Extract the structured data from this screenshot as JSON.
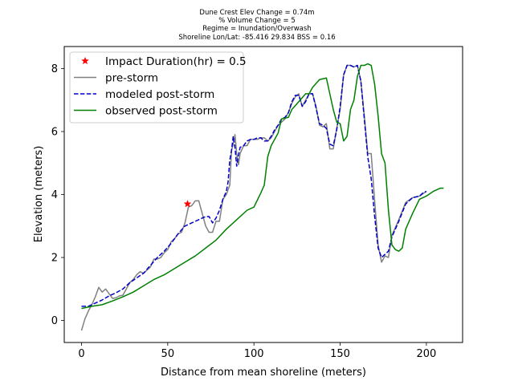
{
  "chart_data": {
    "type": "line",
    "title_lines": [
      "Dune Crest Elev Change = 0.74m",
      "% Volume Change = 5",
      "Regime = Inundation/Overwash",
      "Shoreline Lon/Lat: -85.416 29.834   BSS = 0.16"
    ],
    "xlabel": "Distance from mean shoreline (meters)",
    "ylabel": "Elevation (meters)",
    "xlim": [
      -10,
      221
    ],
    "ylim": [
      -0.7,
      8.7
    ],
    "xticks": [
      0,
      50,
      100,
      150,
      200
    ],
    "yticks": [
      0,
      2,
      4,
      6,
      8
    ],
    "legend_position": "upper-left",
    "marker": {
      "name": "Impact Duration(hr) = 0.5",
      "x": 61.5,
      "y": 3.7,
      "color": "#ff0000",
      "symbol": "star"
    },
    "series": [
      {
        "name": "pre-storm",
        "color": "#808080",
        "style": "solid",
        "points": [
          [
            0,
            -0.32
          ],
          [
            2,
            0.05
          ],
          [
            4,
            0.3
          ],
          [
            6,
            0.5
          ],
          [
            8,
            0.75
          ],
          [
            10,
            1.05
          ],
          [
            12,
            0.9
          ],
          [
            14,
            1.0
          ],
          [
            16,
            0.85
          ],
          [
            18,
            0.7
          ],
          [
            20,
            0.72
          ],
          [
            22,
            0.78
          ],
          [
            24,
            0.8
          ],
          [
            26,
            1.0
          ],
          [
            28,
            1.2
          ],
          [
            30,
            1.3
          ],
          [
            32,
            1.45
          ],
          [
            34,
            1.55
          ],
          [
            36,
            1.5
          ],
          [
            38,
            1.6
          ],
          [
            40,
            1.7
          ],
          [
            42,
            1.95
          ],
          [
            44,
            1.95
          ],
          [
            46,
            2.0
          ],
          [
            48,
            2.15
          ],
          [
            50,
            2.25
          ],
          [
            52,
            2.5
          ],
          [
            54,
            2.6
          ],
          [
            56,
            2.75
          ],
          [
            58,
            2.8
          ],
          [
            60,
            3.1
          ],
          [
            62,
            3.6
          ],
          [
            64,
            3.65
          ],
          [
            66,
            3.8
          ],
          [
            68,
            3.8
          ],
          [
            70,
            3.4
          ],
          [
            72,
            3.0
          ],
          [
            74,
            2.8
          ],
          [
            76,
            2.8
          ],
          [
            78,
            3.15
          ],
          [
            80,
            3.15
          ],
          [
            82,
            3.85
          ],
          [
            84,
            4.0
          ],
          [
            86,
            4.3
          ],
          [
            87,
            5.4
          ],
          [
            88,
            5.6
          ],
          [
            89,
            5.9
          ],
          [
            90,
            5.3
          ],
          [
            91,
            4.95
          ],
          [
            92,
            5.3
          ],
          [
            94,
            5.55
          ],
          [
            96,
            5.55
          ],
          [
            98,
            5.75
          ],
          [
            100,
            5.75
          ],
          [
            102,
            5.75
          ],
          [
            104,
            5.8
          ],
          [
            106,
            5.8
          ],
          [
            108,
            5.7
          ],
          [
            110,
            5.8
          ],
          [
            112,
            6.0
          ],
          [
            114,
            6.2
          ],
          [
            116,
            6.3
          ],
          [
            118,
            6.4
          ],
          [
            120,
            6.6
          ],
          [
            122,
            6.9
          ],
          [
            124,
            7.1
          ],
          [
            126,
            7.2
          ],
          [
            128,
            6.8
          ],
          [
            130,
            7.0
          ],
          [
            132,
            7.2
          ],
          [
            134,
            7.2
          ],
          [
            136,
            6.8
          ],
          [
            138,
            6.2
          ],
          [
            140,
            6.15
          ],
          [
            142,
            6.25
          ],
          [
            144,
            5.45
          ],
          [
            146,
            5.45
          ],
          [
            148,
            6.1
          ],
          [
            150,
            6.7
          ],
          [
            152,
            7.8
          ],
          [
            154,
            8.1
          ],
          [
            156,
            8.1
          ],
          [
            158,
            8.05
          ],
          [
            160,
            8.1
          ],
          [
            162,
            7.6
          ],
          [
            164,
            6.5
          ],
          [
            166,
            5.3
          ],
          [
            168,
            5.3
          ],
          [
            170,
            3.8
          ],
          [
            172,
            2.4
          ],
          [
            174,
            1.85
          ],
          [
            176,
            2.05
          ],
          [
            178,
            2.0
          ],
          [
            180,
            2.7
          ],
          [
            184,
            3.2
          ],
          [
            188,
            3.75
          ],
          [
            192,
            3.9
          ],
          [
            196,
            3.95
          ],
          [
            200,
            4.1
          ]
        ]
      },
      {
        "name": "modeled post-storm",
        "color": "#0000cc",
        "style": "dashed",
        "points": [
          [
            0,
            0.45
          ],
          [
            4,
            0.45
          ],
          [
            8,
            0.55
          ],
          [
            12,
            0.65
          ],
          [
            16,
            0.78
          ],
          [
            20,
            0.88
          ],
          [
            24,
            1.0
          ],
          [
            28,
            1.2
          ],
          [
            32,
            1.35
          ],
          [
            36,
            1.5
          ],
          [
            40,
            1.75
          ],
          [
            44,
            2.0
          ],
          [
            48,
            2.2
          ],
          [
            52,
            2.45
          ],
          [
            56,
            2.75
          ],
          [
            60,
            3.0
          ],
          [
            64,
            3.1
          ],
          [
            68,
            3.2
          ],
          [
            72,
            3.3
          ],
          [
            74,
            3.3
          ],
          [
            76,
            3.1
          ],
          [
            78,
            3.25
          ],
          [
            80,
            3.5
          ],
          [
            82,
            3.85
          ],
          [
            84,
            4.1
          ],
          [
            85,
            4.4
          ],
          [
            86,
            5.1
          ],
          [
            87,
            5.4
          ],
          [
            88,
            5.85
          ],
          [
            89,
            5.5
          ],
          [
            90,
            4.9
          ],
          [
            91,
            5.25
          ],
          [
            92,
            5.5
          ],
          [
            94,
            5.55
          ],
          [
            96,
            5.7
          ],
          [
            98,
            5.75
          ],
          [
            100,
            5.75
          ],
          [
            102,
            5.8
          ],
          [
            104,
            5.8
          ],
          [
            106,
            5.7
          ],
          [
            108,
            5.7
          ],
          [
            110,
            5.85
          ],
          [
            112,
            6.05
          ],
          [
            114,
            6.2
          ],
          [
            116,
            6.4
          ],
          [
            118,
            6.45
          ],
          [
            120,
            6.6
          ],
          [
            122,
            6.95
          ],
          [
            124,
            7.15
          ],
          [
            126,
            7.15
          ],
          [
            128,
            6.8
          ],
          [
            130,
            6.95
          ],
          [
            132,
            7.2
          ],
          [
            134,
            7.2
          ],
          [
            136,
            6.75
          ],
          [
            138,
            6.25
          ],
          [
            140,
            6.2
          ],
          [
            142,
            6.1
          ],
          [
            144,
            5.6
          ],
          [
            146,
            5.55
          ],
          [
            148,
            6.05
          ],
          [
            150,
            6.8
          ],
          [
            152,
            7.8
          ],
          [
            154,
            8.1
          ],
          [
            156,
            8.1
          ],
          [
            158,
            8.05
          ],
          [
            160,
            8.1
          ],
          [
            162,
            7.6
          ],
          [
            164,
            6.4
          ],
          [
            166,
            5.2
          ],
          [
            168,
            4.5
          ],
          [
            170,
            3.3
          ],
          [
            172,
            2.3
          ],
          [
            174,
            2.0
          ],
          [
            176,
            2.1
          ],
          [
            178,
            2.2
          ],
          [
            180,
            2.65
          ],
          [
            184,
            3.15
          ],
          [
            188,
            3.7
          ],
          [
            192,
            3.9
          ],
          [
            196,
            3.95
          ],
          [
            198,
            4.05
          ],
          [
            200,
            4.1
          ]
        ]
      },
      {
        "name": "observed post-storm",
        "color": "#008000",
        "style": "solid",
        "points": [
          [
            0,
            0.38
          ],
          [
            6,
            0.45
          ],
          [
            12,
            0.5
          ],
          [
            18,
            0.62
          ],
          [
            24,
            0.75
          ],
          [
            30,
            0.9
          ],
          [
            36,
            1.1
          ],
          [
            42,
            1.3
          ],
          [
            48,
            1.45
          ],
          [
            54,
            1.65
          ],
          [
            60,
            1.85
          ],
          [
            66,
            2.05
          ],
          [
            72,
            2.3
          ],
          [
            78,
            2.55
          ],
          [
            84,
            2.9
          ],
          [
            90,
            3.2
          ],
          [
            96,
            3.5
          ],
          [
            100,
            3.6
          ],
          [
            104,
            4.05
          ],
          [
            106,
            4.3
          ],
          [
            108,
            5.2
          ],
          [
            110,
            5.55
          ],
          [
            114,
            5.95
          ],
          [
            116,
            6.4
          ],
          [
            120,
            6.45
          ],
          [
            122,
            6.7
          ],
          [
            126,
            6.95
          ],
          [
            130,
            7.2
          ],
          [
            132,
            7.2
          ],
          [
            134,
            7.4
          ],
          [
            138,
            7.65
          ],
          [
            142,
            7.7
          ],
          [
            144,
            7.2
          ],
          [
            146,
            6.7
          ],
          [
            148,
            6.3
          ],
          [
            150,
            6.25
          ],
          [
            152,
            5.7
          ],
          [
            154,
            5.85
          ],
          [
            156,
            6.7
          ],
          [
            158,
            7.0
          ],
          [
            160,
            7.75
          ],
          [
            162,
            8.1
          ],
          [
            164,
            8.1
          ],
          [
            166,
            8.15
          ],
          [
            168,
            8.1
          ],
          [
            170,
            7.5
          ],
          [
            172,
            6.5
          ],
          [
            174,
            5.3
          ],
          [
            176,
            5.0
          ],
          [
            178,
            3.5
          ],
          [
            180,
            2.4
          ],
          [
            182,
            2.25
          ],
          [
            184,
            2.2
          ],
          [
            186,
            2.3
          ],
          [
            188,
            2.9
          ],
          [
            192,
            3.4
          ],
          [
            196,
            3.85
          ],
          [
            200,
            3.95
          ],
          [
            204,
            4.1
          ],
          [
            208,
            4.2
          ],
          [
            210,
            4.2
          ]
        ]
      }
    ]
  }
}
